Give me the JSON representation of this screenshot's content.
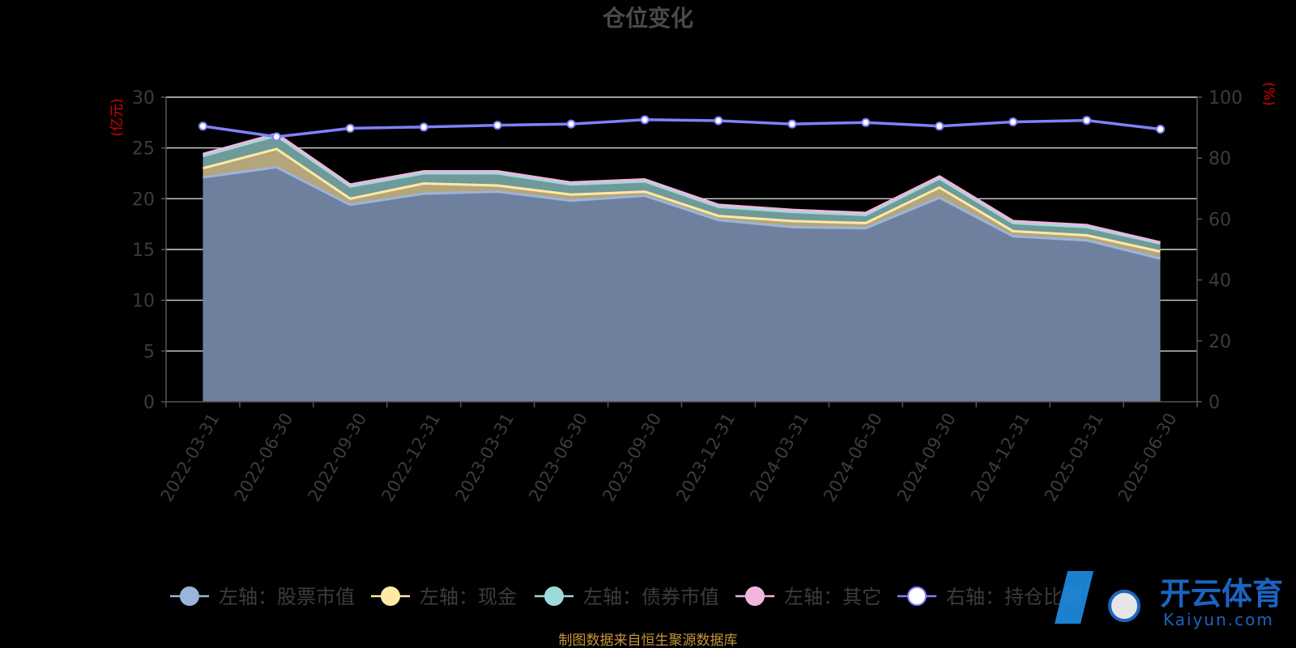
{
  "chart_data": {
    "type": "area",
    "title": "仓位变化",
    "left_axis": {
      "unit": "(亿元)",
      "ylim": [
        0,
        30
      ],
      "ticks": [
        0,
        5,
        10,
        15,
        20,
        25,
        30
      ]
    },
    "right_axis": {
      "unit": "(%)",
      "ylim": [
        0,
        100
      ],
      "ticks": [
        0,
        20,
        40,
        60,
        80,
        100
      ]
    },
    "categories": [
      "2022-03-31",
      "2022-06-30",
      "2022-09-30",
      "2022-12-31",
      "2023-03-31",
      "2023-06-30",
      "2023-09-30",
      "2023-12-31",
      "2024-03-31",
      "2024-06-30",
      "2024-09-30",
      "2024-12-31",
      "2025-03-31",
      "2025-06-30"
    ],
    "stack_series": [
      {
        "name": "左轴：股票市值",
        "color": "#9ab4dc",
        "fill": "#6f809f",
        "values": [
          22.1,
          23.1,
          19.4,
          20.5,
          20.7,
          19.8,
          20.3,
          17.9,
          17.2,
          17.1,
          20.1,
          16.3,
          15.9,
          14.1
        ]
      },
      {
        "name": "左轴：现金",
        "color": "#ffe9a4",
        "fill": "#b5a57b",
        "values": [
          0.9,
          1.8,
          0.6,
          1.0,
          0.6,
          0.6,
          0.4,
          0.4,
          0.6,
          0.5,
          1.0,
          0.5,
          0.5,
          0.7
        ]
      },
      {
        "name": "左轴：债券市值",
        "color": "#9fdada",
        "fill": "#6f9a9a",
        "values": [
          1.2,
          1.3,
          1.2,
          1.0,
          1.2,
          1.0,
          1.0,
          0.9,
          0.9,
          0.8,
          0.9,
          0.8,
          0.8,
          0.8
        ]
      },
      {
        "name": "左轴：其它",
        "color": "#f0b6dc",
        "fill": "#a98ca2",
        "values": [
          0.2,
          0.2,
          0.2,
          0.2,
          0.2,
          0.2,
          0.2,
          0.2,
          0.2,
          0.2,
          0.2,
          0.2,
          0.2,
          0.1
        ]
      }
    ],
    "line_series": {
      "name": "右轴：持仓比例",
      "color": "#8080ff",
      "values": [
        90.5,
        87.0,
        89.8,
        90.2,
        90.8,
        91.2,
        92.6,
        92.3,
        91.2,
        91.7,
        90.5,
        91.9,
        92.4,
        89.5
      ]
    },
    "legend_position": "bottom",
    "grid": true
  },
  "source_note": "制图数据来自恒生聚源数据库",
  "watermark": {
    "cn": "开云体育",
    "en": "Kaiyun.com"
  },
  "colors": {
    "grid": "#ffffff",
    "axis": "#555555",
    "text": "#3c3c3c",
    "unit": "#e00000"
  }
}
